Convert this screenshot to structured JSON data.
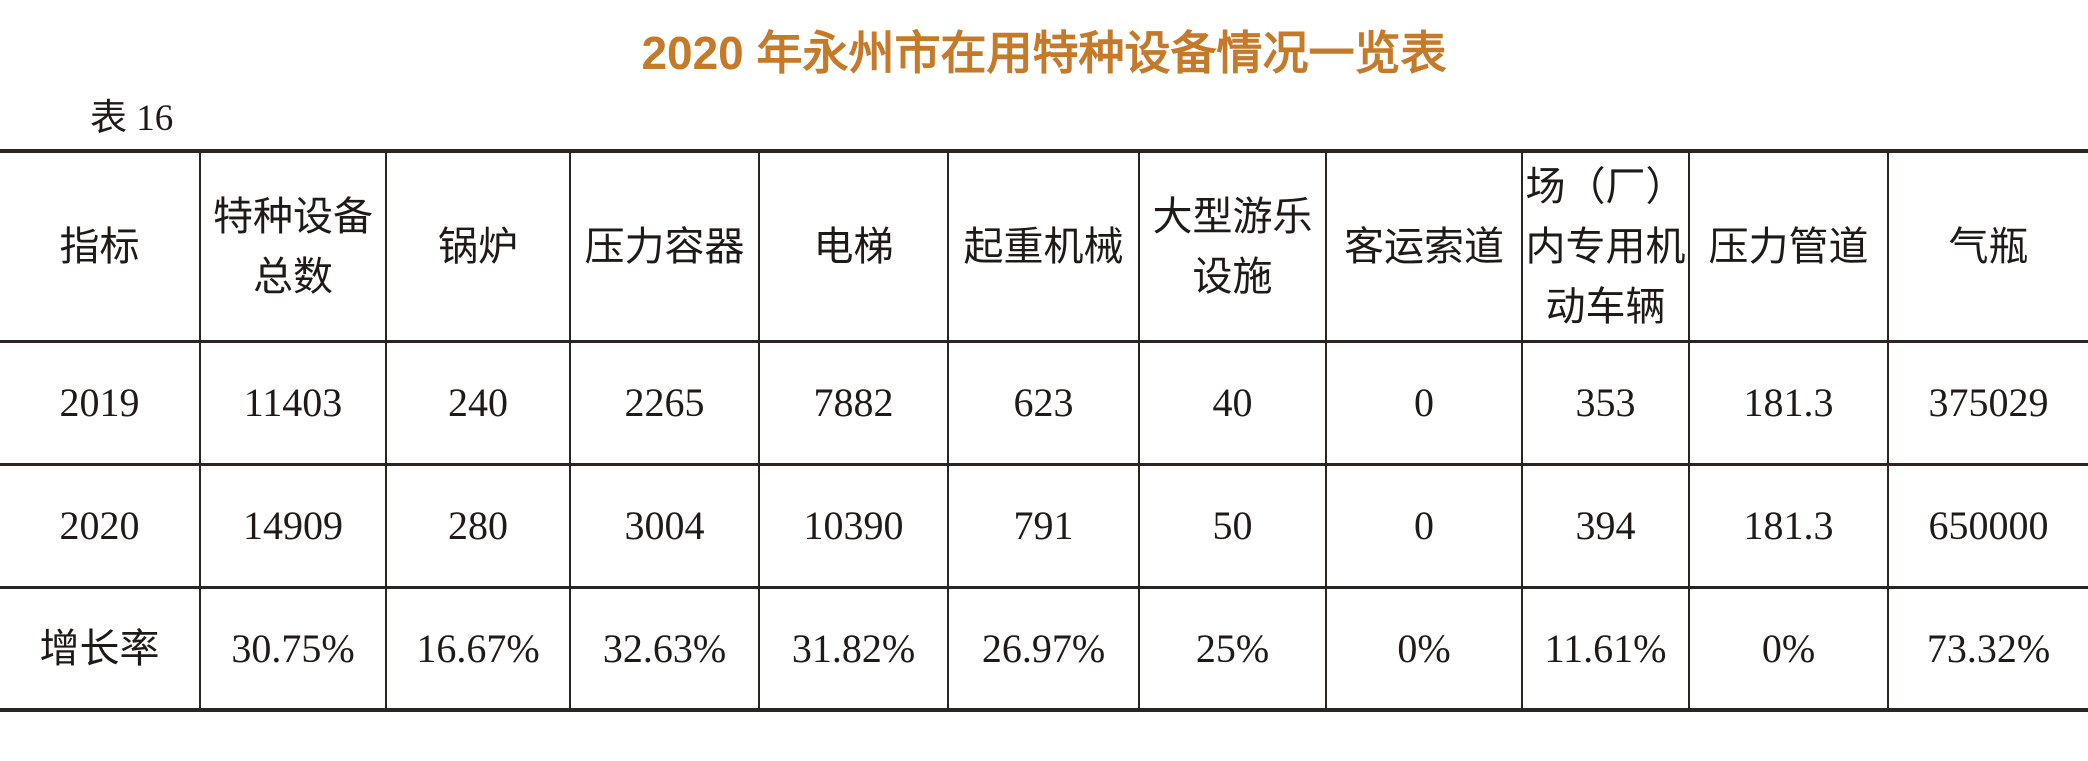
{
  "title": "2020 年永州市在用特种设备情况一览表",
  "table_label": "表 16",
  "colors": {
    "title": "#c47a28",
    "border": "#2b2420",
    "text": "#1f1a17"
  },
  "table": {
    "headers": [
      "指标",
      "特种设备\n总数",
      "锅炉",
      "压力容器",
      "电梯",
      "起重机械",
      "大型游乐\n设施",
      "客运索道",
      "场（厂）\n内专用机\n动车辆",
      "压力管道",
      "气瓶"
    ],
    "rows": [
      {
        "cells": [
          "2019",
          "11403",
          "240",
          "2265",
          "7882",
          "623",
          "40",
          "0",
          "353",
          "181.3",
          "375029"
        ]
      },
      {
        "cells": [
          "2020",
          "14909",
          "280",
          "3004",
          "10390",
          "791",
          "50",
          "0",
          "394",
          "181.3",
          "650000"
        ]
      },
      {
        "cells": [
          "增长率",
          "30.75%",
          "16.67%",
          "32.63%",
          "31.82%",
          "26.97%",
          "25%",
          "0%",
          "11.61%",
          "0%",
          "73.32%"
        ]
      }
    ]
  }
}
